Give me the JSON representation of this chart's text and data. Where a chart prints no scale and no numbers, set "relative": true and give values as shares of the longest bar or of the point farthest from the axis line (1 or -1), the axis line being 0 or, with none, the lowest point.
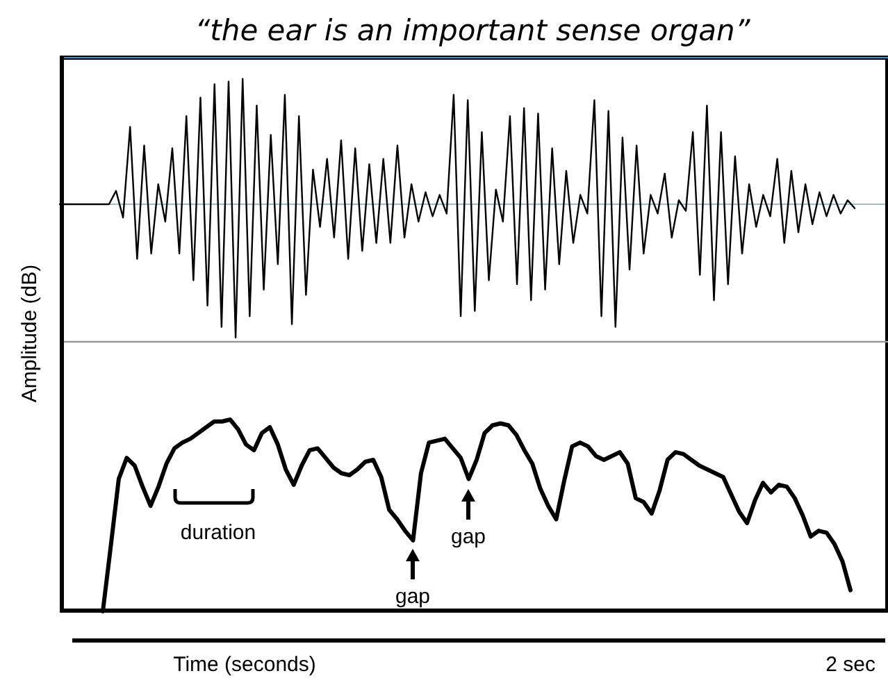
{
  "chart_data": [
    {
      "type": "line",
      "title": "“the ear is an important sense organ”",
      "relative": true,
      "ref_lines": [
        {
          "axis": "y",
          "value": 0,
          "color": "#7aa9b8"
        }
      ],
      "categories": [
        null,
        null,
        null,
        null,
        null,
        null,
        null,
        null,
        null,
        null,
        null,
        null,
        null,
        null,
        null,
        null,
        null,
        null,
        null,
        null,
        null,
        null,
        null,
        null,
        null,
        null,
        null,
        null,
        null,
        null,
        null,
        null,
        null,
        null,
        null,
        null,
        null,
        null,
        null,
        null,
        null,
        null,
        null,
        null,
        null,
        null,
        null,
        null,
        null,
        null,
        null,
        null,
        null,
        null,
        null,
        null,
        null,
        null,
        null,
        null,
        null,
        null,
        null,
        null,
        null,
        null,
        null,
        null,
        null,
        null,
        null,
        null,
        null,
        null,
        null,
        null,
        null,
        null,
        null,
        null,
        null,
        null,
        null,
        null,
        null,
        null,
        null,
        null,
        null,
        null,
        null,
        null,
        null,
        null,
        null,
        null,
        null,
        null,
        null,
        null,
        null,
        null,
        null,
        null,
        null,
        null,
        null,
        null,
        null,
        null,
        null,
        null,
        null,
        null
      ],
      "series": [
        {
          "color": "#000000",
          "values": [
            0,
            0,
            0,
            0,
            0,
            0,
            0,
            0,
            0.1,
            -0.1,
            0.58,
            -0.41,
            0.44,
            -0.37,
            0.15,
            -0.13,
            0.42,
            -0.37,
            0.66,
            -0.57,
            0.8,
            -0.76,
            0.9,
            -0.92,
            0.92,
            -1,
            0.94,
            -0.84,
            0.74,
            -0.64,
            0.52,
            -0.45,
            0.82,
            -0.9,
            0.66,
            -0.68,
            0.26,
            -0.17,
            0.34,
            -0.25,
            0.48,
            -0.41,
            0.42,
            -0.35,
            0.3,
            -0.29,
            0.34,
            -0.29,
            0.44,
            -0.25,
            0.15,
            -0.13,
            0.09,
            -0.09,
            0.07,
            -0.07,
            0.82,
            -0.84,
            0.78,
            -0.8,
            0.54,
            -0.57,
            0.11,
            -0.13,
            0.66,
            -0.6,
            0.72,
            -0.72,
            0.68,
            -0.64,
            0.42,
            -0.45,
            0.25,
            -0.29,
            0.07,
            -0.07,
            0.78,
            -0.84,
            0.7,
            -0.92,
            0.5,
            -0.49,
            0.44,
            -0.37,
            0.07,
            -0.07,
            0.23,
            -0.25,
            0.03,
            -0.05,
            0.54,
            -0.53,
            0.74,
            -0.72,
            0.54,
            -0.6,
            0.36,
            -0.37,
            0.15,
            -0.17,
            0.07,
            -0.09,
            0.34,
            -0.29,
            0.25,
            -0.21,
            0.15,
            -0.15,
            0.09,
            -0.09,
            0.07,
            -0.07,
            0.03,
            -0.03
          ]
        }
      ]
    },
    {
      "type": "line",
      "relative": true,
      "xlabel": "Time (seconds)",
      "ylabel": "Amplitude (dB)",
      "categories": [
        null,
        null,
        null,
        null,
        null,
        null,
        null,
        null,
        null,
        null,
        null,
        null,
        null,
        null,
        null,
        null,
        null,
        null,
        null,
        null,
        null,
        null,
        null,
        null,
        null,
        null,
        null,
        null,
        null,
        null,
        null,
        null,
        null,
        null,
        null,
        null,
        null,
        null,
        null,
        null,
        null,
        null,
        null,
        null,
        null,
        null,
        null,
        null,
        null,
        null,
        null,
        null,
        null,
        null,
        null,
        null,
        null,
        null,
        null,
        null,
        null,
        null,
        null,
        null,
        null,
        null,
        null,
        null,
        null,
        null,
        null,
        null,
        null,
        null,
        null,
        null,
        null,
        null,
        null,
        null,
        null,
        null,
        null,
        null,
        null,
        null,
        null,
        null,
        null,
        null,
        null,
        null,
        null,
        null,
        null
      ],
      "series": [
        {
          "color": "#000000",
          "values": [
            0,
            0.34,
            0.69,
            0.8,
            0.76,
            0.65,
            0.55,
            0.65,
            0.77,
            0.85,
            0.88,
            0.9,
            0.93,
            0.96,
            0.99,
            0.99,
            1.0,
            0.95,
            0.87,
            0.84,
            0.93,
            0.96,
            0.87,
            0.74,
            0.66,
            0.76,
            0.84,
            0.85,
            0.8,
            0.75,
            0.72,
            0.71,
            0.74,
            0.78,
            0.79,
            0.7,
            0.53,
            0.48,
            0.42,
            0.37,
            0.72,
            0.88,
            0.89,
            0.9,
            0.85,
            0.8,
            0.69,
            0.79,
            0.93,
            0.97,
            0.98,
            0.97,
            0.92,
            0.84,
            0.77,
            0.64,
            0.55,
            0.48,
            0.68,
            0.86,
            0.88,
            0.86,
            0.81,
            0.79,
            0.81,
            0.83,
            0.77,
            0.59,
            0.57,
            0.51,
            0.63,
            0.79,
            0.83,
            0.82,
            0.79,
            0.76,
            0.74,
            0.72,
            0.7,
            0.61,
            0.52,
            0.46,
            0.58,
            0.67,
            0.62,
            0.66,
            0.65,
            0.59,
            0.5,
            0.39,
            0.42,
            0.41,
            0.35,
            0.26,
            0.11
          ]
        }
      ],
      "annotations": [
        "duration",
        "gap",
        "gap",
        "2 sec"
      ]
    }
  ]
}
